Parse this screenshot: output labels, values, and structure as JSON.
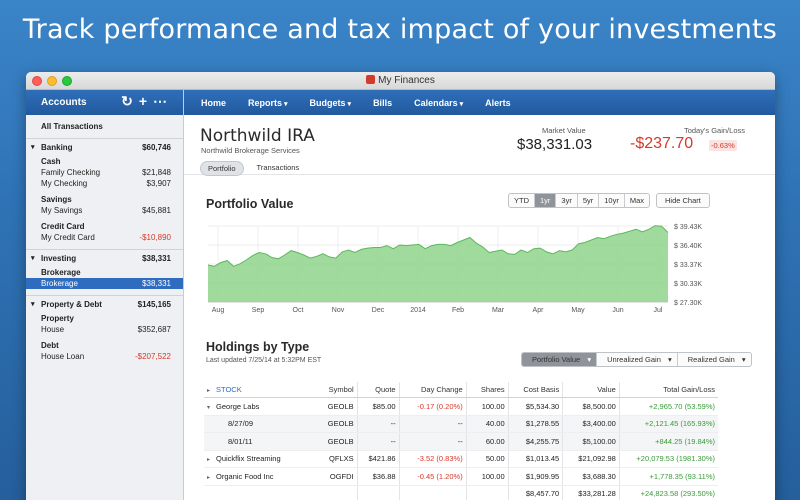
{
  "hero": {
    "headline": "Track performance and tax impact of your investments"
  },
  "window": {
    "title": "My Finances"
  },
  "sidebar": {
    "header": "Accounts",
    "all_transactions": "All Transactions",
    "groups": [
      {
        "label": "Banking",
        "amount": "$60,746",
        "items": [
          {
            "kind": "sub",
            "label": "Cash"
          },
          {
            "kind": "leaf",
            "label": "Family Checking",
            "amount": "$21,848"
          },
          {
            "kind": "leaf",
            "label": "My Checking",
            "amount": "$3,907"
          },
          {
            "kind": "sub",
            "label": "Savings"
          },
          {
            "kind": "leaf",
            "label": "My Savings",
            "amount": "$45,881"
          },
          {
            "kind": "sub",
            "label": "Credit Card"
          },
          {
            "kind": "leaf",
            "label": "My Credit Card",
            "amount": "-$10,890"
          }
        ]
      },
      {
        "label": "Investing",
        "amount": "$38,331",
        "items": [
          {
            "kind": "sub",
            "label": "Brokerage"
          },
          {
            "kind": "leaf",
            "label": "Brokerage",
            "amount": "$38,331"
          }
        ]
      },
      {
        "label": "Property & Debt",
        "amount": "$145,165",
        "items": [
          {
            "kind": "sub",
            "label": "Property"
          },
          {
            "kind": "leaf",
            "label": "House",
            "amount": "$352,687"
          },
          {
            "kind": "sub",
            "label": "Debt"
          },
          {
            "kind": "leaf",
            "label": "House Loan",
            "amount": "-$207,522"
          }
        ]
      }
    ]
  },
  "nav": {
    "home": "Home",
    "reports": "Reports",
    "budgets": "Budgets",
    "bills": "Bills",
    "calendars": "Calendars",
    "alerts": "Alerts"
  },
  "account": {
    "name": "Northwild IRA",
    "institution": "Northwild Brokerage Services",
    "market_value_label": "Market Value",
    "market_value": "$38,331.03",
    "gain_loss_label": "Today's Gain/Loss",
    "gain_loss": "-$237.70",
    "gain_loss_pct": "-0.63%",
    "tabs": [
      "Portfolio",
      "Transactions"
    ]
  },
  "portfolio": {
    "title": "Portfolio Value",
    "ranges": [
      "YTD",
      "1yr",
      "3yr",
      "5yr",
      "10yr",
      "Max"
    ],
    "selected_range": "1yr",
    "hide_chart": "Hide Chart"
  },
  "chart_data": {
    "type": "area",
    "title": "Portfolio Value",
    "color": "#8fd48c",
    "x_tick_labels": [
      "Aug",
      "Sep",
      "Oct",
      "Nov",
      "Dec",
      "2014",
      "Feb",
      "Mar",
      "Apr",
      "May",
      "Jun",
      "Jul"
    ],
    "y_tick_labels": [
      "$ 39.43K",
      "$ 36.40K",
      "$ 33.37K",
      "$ 30.33K",
      "$ 27.30K"
    ],
    "ylim": [
      27.3,
      39.43
    ],
    "y_unit": "$K",
    "values": [
      33.2,
      33.0,
      33.6,
      33.9,
      33.0,
      33.4,
      34.0,
      34.7,
      35.2,
      35.0,
      34.4,
      34.2,
      34.8,
      35.5,
      35.2,
      34.8,
      34.3,
      34.6,
      35.0,
      34.5,
      34.3,
      35.3,
      35.6,
      35.2,
      35.7,
      35.9,
      36.0,
      36.0,
      36.3,
      35.8,
      36.4,
      36.3,
      36.4,
      36.5,
      35.8,
      36.3,
      36.5,
      36.5,
      36.3,
      36.8,
      37.2,
      37.6,
      36.7,
      36.1,
      35.2,
      35.4,
      35.6,
      35.0,
      34.9,
      35.6,
      35.2,
      35.8,
      35.9,
      35.3,
      35.0,
      35.5,
      35.3,
      35.6,
      36.6,
      36.8,
      37.2,
      37.6,
      37.4,
      37.8,
      38.1,
      38.3,
      38.6,
      38.9,
      38.5,
      38.9,
      39.5,
      39.4,
      38.4
    ],
    "grid": true
  },
  "holdings": {
    "title": "Holdings by Type",
    "updated": "Last updated 7/25/14 at 5:32PM EST",
    "views": [
      "Portfolio Value",
      "Unrealized Gain",
      "Realized Gain"
    ],
    "selected_view": "Portfolio Value",
    "columns": [
      "STOCK",
      "Symbol",
      "Quote",
      "Day Change",
      "Shares",
      "Cost Basis",
      "Value",
      "Total Gain/Loss"
    ],
    "rows": [
      {
        "kind": "parent",
        "open": true,
        "name": "George Labs",
        "symbol": "GEOLB",
        "quote": "$85.00",
        "day_change": "-0.17 (0.20%)",
        "day_change_neg": true,
        "shares": "100.00",
        "cost_basis": "$5,534.30",
        "value": "$8,500.00",
        "gain": "+2,965.70 (53.59%)"
      },
      {
        "kind": "child",
        "name": "8/27/09",
        "symbol": "GEOLB",
        "quote": "--",
        "day_change": "--",
        "day_change_neg": false,
        "shares": "40.00",
        "cost_basis": "$1,278.55",
        "value": "$3,400.00",
        "gain": "+2,121.45 (165.93%)"
      },
      {
        "kind": "child",
        "name": "8/01/11",
        "symbol": "GEOLB",
        "quote": "--",
        "day_change": "--",
        "day_change_neg": false,
        "shares": "60.00",
        "cost_basis": "$4,255.75",
        "value": "$5,100.00",
        "gain": "+844.25 (19.84%)"
      },
      {
        "kind": "parent",
        "open": false,
        "name": "Quickflix Streaming",
        "symbol": "QFLXS",
        "quote": "$421.86",
        "day_change": "-3.52 (0.83%)",
        "day_change_neg": true,
        "shares": "50.00",
        "cost_basis": "$1,013.45",
        "value": "$21,092.98",
        "gain": "+20,079.53 (1981.30%)"
      },
      {
        "kind": "parent",
        "open": false,
        "name": "Organic Food Inc",
        "symbol": "OGFDI",
        "quote": "$36.88",
        "day_change": "-0.45 (1.20%)",
        "day_change_neg": true,
        "shares": "100.00",
        "cost_basis": "$1,909.95",
        "value": "$3,688.30",
        "gain": "+1,778.35 (93.11%)"
      }
    ],
    "totals": {
      "cost_basis": "$8,457.70",
      "value": "$33,281.28",
      "gain": "+24,823.58 (293.50%)"
    }
  }
}
